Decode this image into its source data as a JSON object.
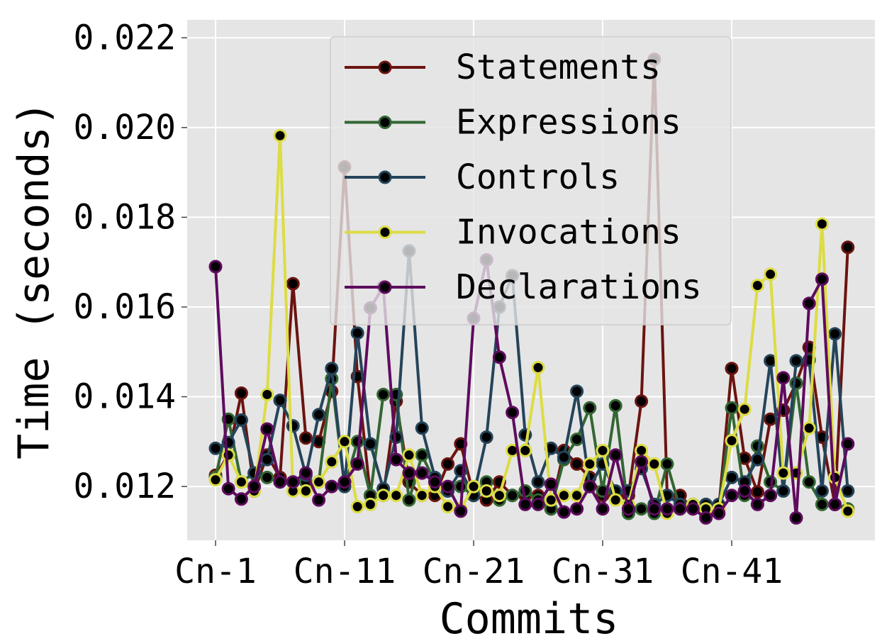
{
  "chart_data": {
    "type": "line",
    "xlabel": "Commits",
    "ylabel": "Time (seconds)",
    "x_tick_labels": [
      "Cn-1",
      "Cn-11",
      "Cn-21",
      "Cn-31",
      "Cn-41"
    ],
    "x_tick_positions": [
      1,
      11,
      21,
      31,
      41
    ],
    "y_ticks": [
      0.012,
      0.014,
      0.016,
      0.018,
      0.02,
      0.022
    ],
    "y_tick_labels": [
      "0.012",
      "0.014",
      "0.016",
      "0.018",
      "0.020",
      "0.022"
    ],
    "xlim": [
      -1.2,
      52.1
    ],
    "ylim": [
      0.0108,
      0.0224
    ],
    "grid": true,
    "legend_position": "top-center",
    "background_color": "#e5e5e5",
    "x": [
      1,
      2,
      3,
      4,
      5,
      6,
      7,
      8,
      9,
      10,
      11,
      12,
      13,
      14,
      15,
      16,
      17,
      18,
      19,
      20,
      21,
      22,
      23,
      24,
      25,
      26,
      27,
      28,
      29,
      30,
      31,
      32,
      33,
      34,
      35,
      36,
      37,
      38,
      39,
      40,
      41,
      42,
      43,
      44,
      45,
      46,
      47,
      48,
      49,
      50
    ],
    "series": [
      {
        "name": "Statements",
        "color": "#6b1410",
        "values": [
          0.01225,
          0.0127,
          0.01408,
          0.0119,
          0.0127,
          0.0122,
          0.01652,
          0.01308,
          0.013,
          0.01412,
          0.01912,
          0.01445,
          0.0118,
          0.0118,
          0.0139,
          0.0121,
          0.0118,
          0.0118,
          0.0125,
          0.01295,
          0.0118,
          0.0117,
          0.0121,
          0.0118,
          0.0118,
          0.0118,
          0.0115,
          0.0128,
          0.0125,
          0.0122,
          0.0118,
          0.0118,
          0.0118,
          0.0139,
          0.02152,
          0.0118,
          0.0118,
          0.0115,
          0.0114,
          0.0115,
          0.01463,
          0.01263,
          0.01188,
          0.0135,
          0.0137,
          0.0143,
          0.0151,
          0.0131,
          0.0116,
          0.01733
        ]
      },
      {
        "name": "Expressions",
        "color": "#336633",
        "values": [
          0.0122,
          0.0135,
          0.0121,
          0.0123,
          0.0122,
          0.0121,
          0.0121,
          0.0121,
          0.0121,
          0.0144,
          0.012,
          0.013,
          0.0118,
          0.01405,
          0.01405,
          0.0117,
          0.0127,
          0.0121,
          0.0119,
          0.012,
          0.0118,
          0.0121,
          0.0117,
          0.0118,
          0.0119,
          0.0117,
          0.0115,
          0.0126,
          0.01305,
          0.01375,
          0.0119,
          0.0138,
          0.0114,
          0.0115,
          0.0114,
          0.0125,
          0.0115,
          0.0116,
          0.0116,
          0.0115,
          0.01375,
          0.0118,
          0.0129,
          0.0121,
          0.0119,
          0.0143,
          0.0121,
          0.0116,
          0.0116,
          0.0115
        ]
      },
      {
        "name": "Controls",
        "color": "#24445a",
        "values": [
          0.01285,
          0.01298,
          0.01348,
          0.0123,
          0.0126,
          0.01392,
          0.01335,
          0.01225,
          0.0136,
          0.01463,
          0.012,
          0.01542,
          0.01295,
          0.01195,
          0.0131,
          0.01725,
          0.0133,
          0.0122,
          0.0119,
          0.01235,
          0.0118,
          0.0131,
          0.016,
          0.0167,
          0.01315,
          0.0121,
          0.01285,
          0.01265,
          0.01412,
          0.012,
          0.0125,
          0.0119,
          0.0119,
          0.0124,
          0.0116,
          0.0118,
          0.0116,
          0.0116,
          0.0116,
          0.0116,
          0.0122,
          0.0121,
          0.0126,
          0.0148,
          0.0119,
          0.0148,
          0.01482,
          0.0119,
          0.0154,
          0.0119
        ]
      },
      {
        "name": "Invocations",
        "color": "#dcdc44",
        "values": [
          0.01215,
          0.0127,
          0.0121,
          0.0119,
          0.01405,
          0.01982,
          0.0119,
          0.0119,
          0.0121,
          0.01255,
          0.013,
          0.01155,
          0.0116,
          0.0118,
          0.0118,
          0.0127,
          0.0118,
          0.012,
          0.01155,
          0.0115,
          0.012,
          0.0119,
          0.0118,
          0.0128,
          0.0128,
          0.01465,
          0.0117,
          0.0118,
          0.0118,
          0.0125,
          0.0128,
          0.0117,
          0.0116,
          0.0128,
          0.0125,
          0.0114,
          0.0115,
          0.0116,
          0.0115,
          0.0115,
          0.01302,
          0.01372,
          0.01648,
          0.01673,
          0.0123,
          0.0123,
          0.0133,
          0.01785,
          0.0122,
          0.01145
        ]
      },
      {
        "name": "Declarations",
        "color": "#5e0b5e",
        "values": [
          0.0169,
          0.01195,
          0.01172,
          0.012,
          0.01328,
          0.0121,
          0.0121,
          0.0123,
          0.0117,
          0.012,
          0.0121,
          0.0125,
          0.01598,
          0.01645,
          0.0126,
          0.0123,
          0.0123,
          0.0121,
          0.012,
          0.01145,
          0.01575,
          0.01705,
          0.01488,
          0.01365,
          0.0116,
          0.0116,
          0.01205,
          0.01143,
          0.0115,
          0.012,
          0.0115,
          0.0127,
          0.0115,
          0.01255,
          0.0115,
          0.0115,
          0.0115,
          0.0115,
          0.0113,
          0.0114,
          0.0118,
          0.0119,
          0.0116,
          0.0118,
          0.01442,
          0.0113,
          0.01608,
          0.01662,
          0.0116,
          0.01295
        ]
      }
    ]
  }
}
